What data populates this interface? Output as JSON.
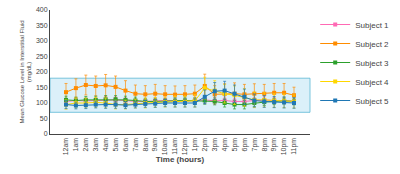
{
  "chart_data": {
    "type": "line",
    "xlabel": "Time (hours)",
    "ylabel": "Mean Glucose Level in Interstitial Fluid\n(mg/dL)",
    "categories": [
      "12am",
      "1am",
      "2am",
      "3am",
      "4am",
      "5am",
      "6am",
      "7am",
      "8am",
      "9am",
      "10am",
      "11am",
      "12pm",
      "1pm",
      "2pm",
      "3pm",
      "4pm",
      "5pm",
      "6pm",
      "7pm",
      "8pm",
      "9pm",
      "10pm",
      "11pm"
    ],
    "series": [
      {
        "name": "Subject 1",
        "color": "#ff69b4",
        "marker": "square",
        "values": [
          105,
          108,
          107,
          108,
          110,
          110,
          108,
          105,
          105,
          107,
          108,
          107,
          106,
          108,
          110,
          107,
          108,
          105,
          105,
          108,
          110,
          108,
          107,
          106
        ],
        "errors": [
          10,
          9,
          9,
          9,
          10,
          10,
          9,
          8,
          9,
          10,
          9,
          10,
          10,
          11,
          12,
          11,
          11,
          10,
          10,
          10,
          11,
          10,
          9,
          10
        ]
      },
      {
        "name": "Subject 2",
        "color": "#ff8c00",
        "marker": "square",
        "values": [
          135,
          148,
          158,
          155,
          157,
          152,
          140,
          130,
          128,
          130,
          128,
          127,
          128,
          130,
          155,
          128,
          130,
          130,
          128,
          130,
          130,
          133,
          133,
          125
        ],
        "errors": [
          28,
          30,
          32,
          32,
          35,
          35,
          32,
          28,
          28,
          30,
          28,
          28,
          28,
          28,
          38,
          28,
          32,
          35,
          32,
          32,
          30,
          30,
          30,
          26
        ]
      },
      {
        "name": "Subject 3",
        "color": "#2ca02c",
        "marker": "square",
        "values": [
          110,
          108,
          110,
          110,
          112,
          112,
          110,
          108,
          105,
          105,
          105,
          107,
          108,
          107,
          108,
          105,
          100,
          95,
          95,
          100,
          103,
          105,
          107,
          105
        ],
        "errors": [
          12,
          11,
          11,
          12,
          12,
          12,
          12,
          11,
          10,
          10,
          9,
          10,
          11,
          10,
          12,
          11,
          13,
          14,
          14,
          12,
          11,
          10,
          10,
          11
        ]
      },
      {
        "name": "Subject 4",
        "color": "#ffd700",
        "marker": "square",
        "values": [
          95,
          100,
          100,
          102,
          100,
          95,
          95,
          98,
          100,
          102,
          103,
          105,
          105,
          107,
          148,
          140,
          130,
          125,
          118,
          110,
          110,
          108,
          107,
          105
        ],
        "errors": [
          15,
          16,
          16,
          16,
          16,
          14,
          14,
          14,
          16,
          16,
          16,
          18,
          18,
          20,
          35,
          32,
          30,
          30,
          28,
          25,
          23,
          22,
          22,
          21
        ]
      },
      {
        "name": "Subject 5",
        "color": "#1f77b4",
        "marker": "square",
        "values": [
          95,
          92,
          93,
          95,
          95,
          95,
          93,
          95,
          97,
          98,
          100,
          100,
          100,
          100,
          120,
          138,
          140,
          130,
          120,
          108,
          105,
          103,
          102,
          100
        ],
        "errors": [
          13,
          11,
          11,
          11,
          12,
          12,
          11,
          11,
          11,
          12,
          12,
          13,
          13,
          13,
          22,
          28,
          30,
          28,
          25,
          21,
          19,
          18,
          18,
          17
        ]
      }
    ],
    "shaded_band": {
      "low": 70,
      "high": 180,
      "color": "#87ceeb",
      "border_color": "#5bb8d4"
    },
    "ylim": [
      0,
      400
    ],
    "yticks": [
      0,
      50,
      100,
      150,
      200,
      250,
      300,
      350,
      400
    ],
    "grid": false,
    "legend": "upper right"
  }
}
